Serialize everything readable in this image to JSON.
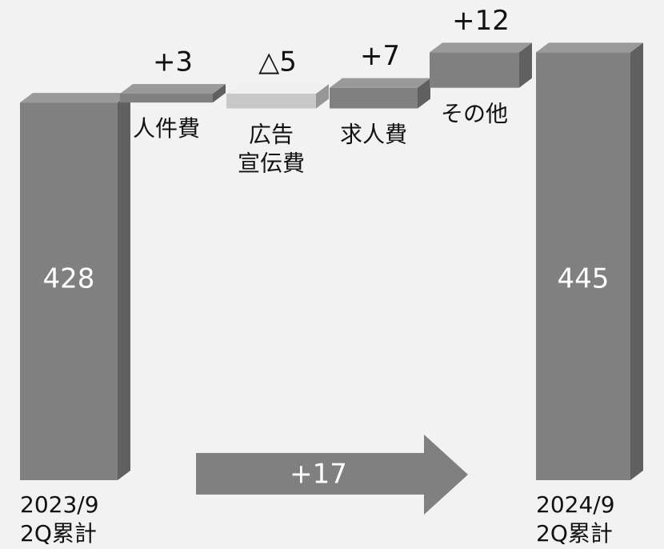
{
  "chart_data": {
    "type": "waterfall",
    "categories": [
      [
        "2023/9",
        "2Q累計"
      ],
      [
        "人件費"
      ],
      [
        "広告",
        "宣伝費"
      ],
      [
        "求人費"
      ],
      [
        "その他"
      ],
      [
        "2024/9",
        "2Q累計"
      ]
    ],
    "values": [
      428,
      3,
      -5,
      7,
      12,
      445
    ],
    "value_labels": [
      "428",
      "+3",
      "△5",
      "+7",
      "+12",
      "445"
    ],
    "annotation": "+17",
    "color": "#808080",
    "negative_color": "#c8c8c8",
    "ylim": [
      300,
      450
    ]
  }
}
